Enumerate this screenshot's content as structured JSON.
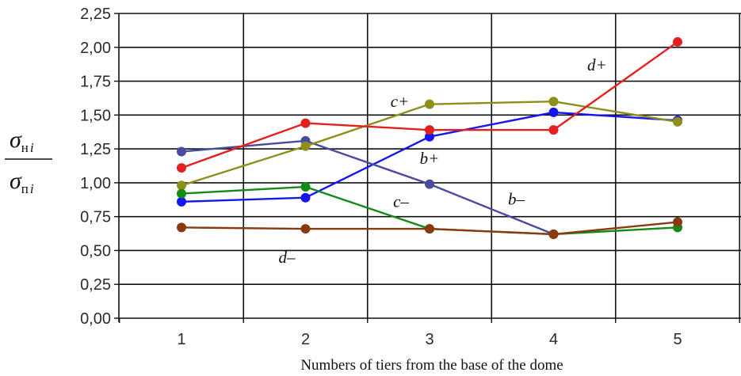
{
  "chart_data": {
    "type": "line",
    "x": [
      1,
      2,
      3,
      4,
      5
    ],
    "x_ticks": [
      "1",
      "2",
      "3",
      "4",
      "5"
    ],
    "y_ticks": [
      "0,00",
      "0,25",
      "0,50",
      "0,75",
      "1,00",
      "1,25",
      "1,50",
      "1,75",
      "2,00",
      "2,25"
    ],
    "ylim": [
      0,
      2.25
    ],
    "xlabel": "Numbers of tiers from the base of the dome",
    "ylabel": {
      "numerator": "σ",
      "numerator_sub": "н",
      "numerator_sub_i": "i",
      "denominator": "σ",
      "denominator_sub": "п",
      "denominator_sub_i": "i"
    },
    "grid": true,
    "series": [
      {
        "name": "b+",
        "color": "#1515ee",
        "values": [
          0.86,
          0.89,
          1.34,
          1.52,
          1.46
        ]
      },
      {
        "name": "b–",
        "color": "#4a4aa0",
        "values": [
          1.23,
          1.31,
          0.99,
          0.62,
          null
        ]
      },
      {
        "name": "c+",
        "color": "#8e8e1a",
        "values": [
          0.98,
          1.27,
          1.58,
          1.6,
          1.45
        ]
      },
      {
        "name": "c–",
        "color": "#138a18",
        "values": [
          0.92,
          0.97,
          0.66,
          0.62,
          0.67
        ]
      },
      {
        "name": "d+",
        "color": "#e22020",
        "values": [
          1.11,
          1.44,
          1.39,
          1.39,
          2.04
        ]
      },
      {
        "name": "d–",
        "color": "#8a3a10",
        "values": [
          0.67,
          0.66,
          0.66,
          0.62,
          0.71
        ]
      }
    ],
    "annotations": [
      {
        "series": "d+",
        "text": "d+",
        "x": 4.35,
        "y": 1.83
      },
      {
        "series": "c+",
        "text": "c+",
        "x": 2.76,
        "y": 1.56
      },
      {
        "series": "b+",
        "text": "b+",
        "x": 3.0,
        "y": 1.14
      },
      {
        "series": "b–",
        "text": "b–",
        "x": 3.7,
        "y": 0.84
      },
      {
        "series": "c–",
        "text": "c–",
        "x": 2.77,
        "y": 0.82
      },
      {
        "series": "d–",
        "text": "d–",
        "x": 1.85,
        "y": 0.41
      }
    ]
  }
}
